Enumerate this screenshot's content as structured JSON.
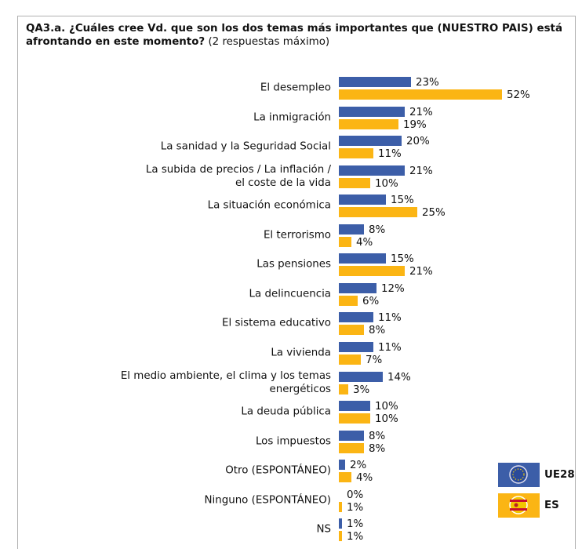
{
  "chart_data": {
    "type": "bar",
    "orientation": "horizontal",
    "title": "QA3.a. ¿Cuáles cree Vd. que son los dos temas más importantes que (NUESTRO PAIS) está afrontando en este momento?",
    "subtitle": "(2 respuestas máximo)",
    "categories": [
      "El desempleo",
      "La inmigración",
      "La sanidad y la Seguridad Social",
      "La subida de precios / La inflación /\nel coste de la vida",
      "La situación económica",
      "El terrorismo",
      "Las pensiones",
      "La delincuencia",
      "El sistema educativo",
      "La vivienda",
      "El medio ambiente, el clima y los temas\nenergéticos",
      "La deuda pública",
      "Los impuestos",
      "Otro (ESPONTÁNEO)",
      "Ninguno (ESPONTÁNEO)",
      "NS"
    ],
    "series": [
      {
        "name": "UE28",
        "color": "#3c5ea8",
        "values": [
          23,
          21,
          20,
          21,
          15,
          8,
          15,
          12,
          11,
          11,
          14,
          10,
          8,
          2,
          0,
          1
        ],
        "value_labels": [
          "23%",
          "21%",
          "20%",
          "21%",
          "15%",
          "8%",
          "15%",
          "12%",
          "11%",
          "11%",
          "14%",
          "10%",
          "8%",
          "2%",
          "0%",
          "1%"
        ]
      },
      {
        "name": "ES",
        "color": "#fbb514",
        "values": [
          52,
          19,
          11,
          10,
          25,
          4,
          21,
          6,
          8,
          7,
          3,
          10,
          8,
          4,
          1,
          1
        ],
        "value_labels": [
          "52%",
          "19%",
          "11%",
          "10%",
          "25%",
          "4%",
          "21%",
          "6%",
          "8%",
          "7%",
          "3%",
          "10%",
          "8%",
          "4%",
          "1%",
          "1%"
        ]
      }
    ]
  }
}
